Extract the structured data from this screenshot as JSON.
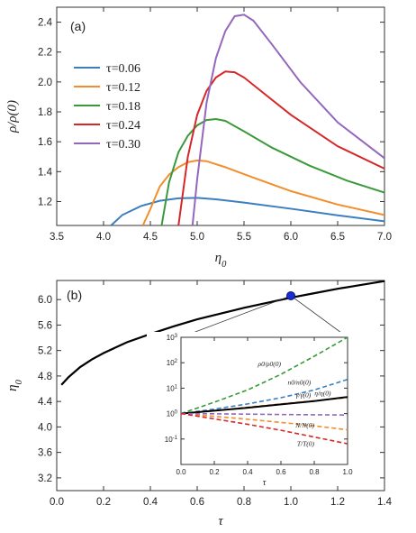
{
  "chart_data": [
    {
      "type": "line",
      "panel_label": "(a)",
      "xlabel": "η0",
      "ylabel": "ρ/ρ(0)",
      "xlim": [
        3.5,
        7.0
      ],
      "ylim": [
        1.04,
        2.5
      ],
      "xticks": [
        "3.5",
        "4.0",
        "4.5",
        "5.0",
        "5.5",
        "6.0",
        "6.5",
        "7.0"
      ],
      "yticks": [
        "1.2",
        "1.4",
        "1.6",
        "1.8",
        "2.0",
        "2.2",
        "2.4"
      ],
      "legend": "top-left",
      "series": [
        {
          "name": "τ=0.06",
          "color": "#3b7fc0",
          "x": [
            4.08,
            4.2,
            4.4,
            4.6,
            4.8,
            5.0,
            5.2,
            5.5,
            6.0,
            6.5,
            7.0
          ],
          "y": [
            1.04,
            1.11,
            1.17,
            1.205,
            1.222,
            1.225,
            1.215,
            1.193,
            1.152,
            1.108,
            1.068
          ]
        },
        {
          "name": "τ=0.12",
          "color": "#f28e2b",
          "x": [
            4.42,
            4.5,
            4.6,
            4.7,
            4.8,
            4.9,
            5.0,
            5.1,
            5.3,
            5.6,
            6.0,
            6.5,
            7.0
          ],
          "y": [
            1.04,
            1.15,
            1.3,
            1.38,
            1.43,
            1.463,
            1.475,
            1.47,
            1.43,
            1.36,
            1.27,
            1.18,
            1.11
          ]
        },
        {
          "name": "τ=0.18",
          "color": "#3a9a3a",
          "x": [
            4.62,
            4.7,
            4.8,
            4.9,
            5.0,
            5.1,
            5.2,
            5.3,
            5.5,
            5.8,
            6.2,
            6.6,
            7.0
          ],
          "y": [
            1.04,
            1.33,
            1.53,
            1.64,
            1.71,
            1.745,
            1.752,
            1.74,
            1.67,
            1.56,
            1.44,
            1.34,
            1.26
          ]
        },
        {
          "name": "τ=0.24",
          "color": "#d62728",
          "x": [
            4.8,
            4.9,
            5.0,
            5.1,
            5.2,
            5.3,
            5.4,
            5.5,
            5.7,
            6.0,
            6.5,
            7.0
          ],
          "y": [
            1.04,
            1.5,
            1.78,
            1.94,
            2.03,
            2.07,
            2.065,
            2.03,
            1.93,
            1.78,
            1.57,
            1.42
          ]
        },
        {
          "name": "τ=0.30",
          "color": "#9467bd",
          "x": [
            4.95,
            5.0,
            5.1,
            5.2,
            5.3,
            5.4,
            5.5,
            5.6,
            5.8,
            6.1,
            6.5,
            7.0
          ],
          "y": [
            1.04,
            1.35,
            1.86,
            2.16,
            2.34,
            2.44,
            2.45,
            2.41,
            2.25,
            2.0,
            1.73,
            1.49
          ]
        }
      ]
    },
    {
      "type": "line",
      "panel_label": "(b)",
      "xlabel": "τ",
      "ylabel": "η0",
      "xlim": [
        0.0,
        1.4
      ],
      "ylim": [
        3.0,
        6.3
      ],
      "xticks": [
        "0.0",
        "0.2",
        "0.4",
        "0.6",
        "0.8",
        "1.0",
        "1.2",
        "1.4"
      ],
      "yticks": [
        "3.2",
        "3.6",
        "4.0",
        "4.4",
        "4.8",
        "5.2",
        "5.6",
        "6.0"
      ],
      "series": [
        {
          "color": "#000000",
          "x": [
            0.02,
            0.05,
            0.1,
            0.15,
            0.2,
            0.3,
            0.4,
            0.5,
            0.6,
            0.7,
            0.8,
            0.9,
            1.0,
            1.1,
            1.2,
            1.3,
            1.4
          ],
          "y": [
            4.66,
            4.78,
            4.94,
            5.06,
            5.16,
            5.33,
            5.46,
            5.58,
            5.69,
            5.78,
            5.87,
            5.95,
            6.03,
            6.1,
            6.17,
            6.23,
            6.29
          ]
        }
      ],
      "marker": {
        "x": 1.0,
        "y": 6.06,
        "color": "#1a2ecf"
      }
    },
    {
      "type": "line",
      "panel_label": "",
      "xlabel": "τ",
      "ylabel": "",
      "xlim": [
        0.0,
        1.0
      ],
      "ylim": [
        0.01,
        1000
      ],
      "yscale": "log",
      "xticks": [
        "0.0",
        "0.2",
        "0.4",
        "0.6",
        "0.8",
        "1.0"
      ],
      "yticks": [
        "10^-1",
        "10^0",
        "10^1",
        "10^2",
        "10^3"
      ],
      "series": [
        {
          "name": "ρ0/ρ0(0)",
          "color": "#3a9a3a",
          "style": "dashed",
          "x": [
            0,
            0.2,
            0.4,
            0.6,
            0.8,
            1.0
          ],
          "y": [
            1,
            2.8,
            8.5,
            35,
            180,
            1000
          ]
        },
        {
          "name": "n0/n0(0)",
          "color": "#3b7fc0",
          "style": "dashed",
          "x": [
            0,
            0.2,
            0.4,
            0.6,
            0.8,
            1.0
          ],
          "y": [
            1,
            1.5,
            2.4,
            4.2,
            8.5,
            22
          ]
        },
        {
          "name": "γ/γ(0)",
          "color": "#f28e2b",
          "style": "dashed",
          "x": [
            0,
            0.2,
            0.4,
            0.6,
            0.8,
            1.0
          ],
          "y": [
            1,
            1.3,
            1.8,
            2.4,
            3.2,
            4.2
          ]
        },
        {
          "name": "η/η(0)",
          "color": "#000000",
          "style": "solid",
          "x": [
            0,
            0.2,
            0.4,
            0.6,
            0.8,
            1.0
          ],
          "y": [
            1,
            1.3,
            1.7,
            2.3,
            3.1,
            4.5
          ]
        },
        {
          "name": "N/N(0)",
          "color": "#f28e2b",
          "style": "dashed",
          "x": [
            0,
            0.2,
            0.4,
            0.6,
            0.8,
            1.0
          ],
          "y": [
            1,
            0.78,
            0.6,
            0.45,
            0.33,
            0.23
          ]
        },
        {
          "name": "N",
          "color": "#9467bd",
          "style": "dashed",
          "x": [
            0,
            0.2,
            0.4,
            0.6,
            0.8,
            1.0
          ],
          "y": [
            1,
            0.98,
            0.95,
            0.92,
            0.9,
            0.88
          ]
        },
        {
          "name": "T/T(0)",
          "color": "#d62728",
          "style": "dashed",
          "x": [
            0,
            0.2,
            0.4,
            0.6,
            0.8,
            1.0
          ],
          "y": [
            1,
            0.62,
            0.38,
            0.22,
            0.12,
            0.065
          ]
        }
      ]
    }
  ]
}
